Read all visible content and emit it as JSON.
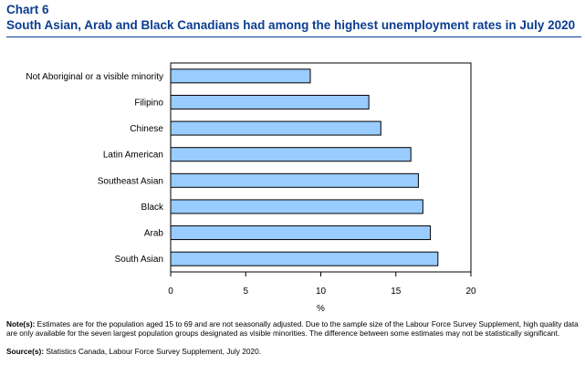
{
  "header": {
    "chart_number": "Chart 6",
    "title": "South Asian, Arab and Black Canadians had among the highest unemployment rates in July 2020"
  },
  "footer": {
    "notes_label": "Note(s):",
    "notes_text": "Estimates are for the population aged 15 to 69 and are not seasonally adjusted. Due to the sample size of the Labour Force Survey Supplement, high quality data are only available for the seven largest population groups designated as visible minorities. The difference between some estimates may not be statistically significant.",
    "source_label": "Source(s):",
    "source_text": "Statistics Canada, Labour Force Survey Supplement, July 2020."
  },
  "colors": {
    "bar_fill": "#99ccff",
    "bar_stroke": "#000000",
    "title": "#0b3d91"
  },
  "chart_data": {
    "type": "bar",
    "orientation": "horizontal",
    "title": "South Asian, Arab and Black Canadians had among the highest unemployment rates in July 2020",
    "xlabel": "%",
    "ylabel": "",
    "categories": [
      "Not Aboriginal or a visible minority",
      "Filipino",
      "Chinese",
      "Latin American",
      "Southeast Asian",
      "Black",
      "Arab",
      "South Asian"
    ],
    "values": [
      9.3,
      13.2,
      14.0,
      16.0,
      16.5,
      16.8,
      17.3,
      17.8
    ],
    "xlim": [
      0,
      20
    ],
    "xticks": [
      "0",
      "5",
      "10",
      "15",
      "20"
    ],
    "grid": false,
    "legend": "none"
  }
}
